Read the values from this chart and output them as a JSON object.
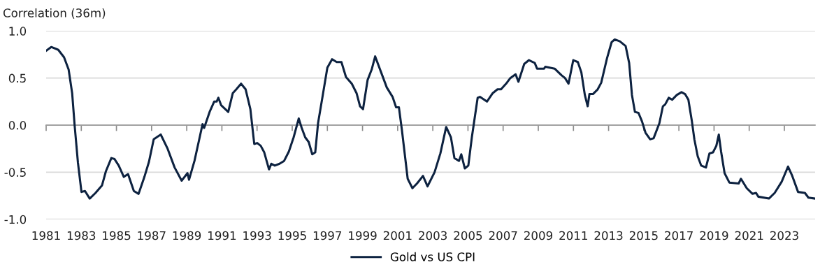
{
  "chart_data": {
    "type": "line",
    "ylabel": "Correlation (36m)",
    "xlim": [
      1981,
      2024.75
    ],
    "xticks": [
      1981,
      1983,
      1985,
      1987,
      1989,
      1991,
      1993,
      1995,
      1997,
      1999,
      2001,
      2003,
      2005,
      2007,
      2009,
      2011,
      2013,
      2015,
      2017,
      2019,
      2021,
      2023
    ],
    "ylim": [
      -1.0,
      1.0
    ],
    "yticks": [
      {
        "value": -1.0,
        "label": "-1.0"
      },
      {
        "value": -0.5,
        "label": "-0.5"
      },
      {
        "value": 0.0,
        "label": "0.0"
      },
      {
        "value": 0.5,
        "label": "0.5"
      },
      {
        "value": 1.0,
        "label": "1.0"
      }
    ],
    "grid": "y",
    "legend": "bottom",
    "marker": "none",
    "line_style": "solid",
    "series": [
      {
        "name": "Gold vs US CPI",
        "color": "#0d2240",
        "x": [
          1981.0,
          1981.29,
          1981.69,
          1982.02,
          1982.28,
          1982.48,
          1982.62,
          1982.81,
          1983.01,
          1983.21,
          1983.48,
          1983.81,
          1984.18,
          1984.4,
          1984.71,
          1984.89,
          1985.13,
          1985.42,
          1985.66,
          1985.99,
          1986.26,
          1986.59,
          1986.85,
          1987.12,
          1987.52,
          1987.91,
          1988.31,
          1988.71,
          1989.04,
          1989.13,
          1989.44,
          1989.77,
          1989.9,
          1989.99,
          1990.3,
          1990.56,
          1990.7,
          1990.8,
          1990.96,
          1991.36,
          1991.62,
          1991.82,
          1992.09,
          1992.35,
          1992.62,
          1992.84,
          1993.01,
          1993.21,
          1993.41,
          1993.68,
          1993.81,
          1994.01,
          1994.28,
          1994.54,
          1994.81,
          1995.08,
          1995.37,
          1995.54,
          1995.74,
          1995.94,
          1996.14,
          1996.31,
          1996.47,
          1996.74,
          1997.0,
          1997.27,
          1997.53,
          1997.8,
          1998.06,
          1998.39,
          1998.66,
          1998.86,
          1999.03,
          1999.29,
          1999.52,
          1999.72,
          2000.12,
          2000.38,
          2000.71,
          2000.91,
          2001.07,
          2001.24,
          2001.57,
          2001.84,
          2002.1,
          2002.44,
          2002.7,
          2003.1,
          2003.43,
          2003.76,
          2004.03,
          2004.23,
          2004.49,
          2004.62,
          2004.82,
          2005.02,
          2005.22,
          2005.55,
          2005.68,
          2006.08,
          2006.41,
          2006.68,
          2006.88,
          2007.21,
          2007.41,
          2007.71,
          2007.87,
          2008.2,
          2008.47,
          2008.8,
          2008.93,
          2009.33,
          2009.4,
          2009.93,
          2010.32,
          2010.52,
          2010.72,
          2010.85,
          2010.99,
          2011.25,
          2011.45,
          2011.65,
          2011.81,
          2011.91,
          2012.11,
          2012.38,
          2012.58,
          2012.91,
          2013.17,
          2013.35,
          2013.64,
          2013.97,
          2014.17,
          2014.33,
          2014.5,
          2014.7,
          2014.9,
          2015.1,
          2015.36,
          2015.56,
          2015.89,
          2016.09,
          2016.22,
          2016.42,
          2016.62,
          2016.88,
          2017.15,
          2017.35,
          2017.54,
          2017.74,
          2017.88,
          2018.07,
          2018.27,
          2018.54,
          2018.74,
          2018.94,
          2019.13,
          2019.27,
          2019.4,
          2019.6,
          2019.87,
          2020.4,
          2020.53,
          2020.86,
          2021.19,
          2021.39,
          2021.52,
          2022.12,
          2022.45,
          2022.85,
          2023.21,
          2023.45,
          2023.78,
          2024.17,
          2024.37,
          2024.73
        ],
        "values": [
          0.79,
          0.83,
          0.8,
          0.72,
          0.59,
          0.34,
          0.0,
          -0.4,
          -0.71,
          -0.7,
          -0.78,
          -0.72,
          -0.64,
          -0.49,
          -0.35,
          -0.36,
          -0.43,
          -0.55,
          -0.52,
          -0.7,
          -0.73,
          -0.55,
          -0.39,
          -0.15,
          -0.1,
          -0.25,
          -0.45,
          -0.59,
          -0.51,
          -0.58,
          -0.38,
          -0.1,
          0.01,
          -0.03,
          0.14,
          0.25,
          0.25,
          0.29,
          0.21,
          0.14,
          0.34,
          0.38,
          0.44,
          0.38,
          0.17,
          -0.2,
          -0.19,
          -0.22,
          -0.29,
          -0.47,
          -0.41,
          -0.43,
          -0.41,
          -0.38,
          -0.28,
          -0.13,
          0.07,
          -0.03,
          -0.13,
          -0.18,
          -0.31,
          -0.29,
          0.02,
          0.32,
          0.61,
          0.7,
          0.67,
          0.67,
          0.51,
          0.44,
          0.34,
          0.2,
          0.17,
          0.48,
          0.59,
          0.73,
          0.53,
          0.4,
          0.3,
          0.19,
          0.19,
          -0.05,
          -0.57,
          -0.67,
          -0.62,
          -0.54,
          -0.65,
          -0.5,
          -0.3,
          -0.02,
          -0.13,
          -0.35,
          -0.38,
          -0.31,
          -0.46,
          -0.43,
          -0.13,
          0.29,
          0.3,
          0.25,
          0.34,
          0.38,
          0.38,
          0.45,
          0.5,
          0.54,
          0.46,
          0.65,
          0.69,
          0.66,
          0.6,
          0.6,
          0.62,
          0.6,
          0.53,
          0.5,
          0.44,
          0.56,
          0.69,
          0.67,
          0.56,
          0.32,
          0.2,
          0.33,
          0.33,
          0.38,
          0.45,
          0.71,
          0.88,
          0.91,
          0.89,
          0.84,
          0.66,
          0.32,
          0.14,
          0.13,
          0.04,
          -0.08,
          -0.15,
          -0.14,
          0.02,
          0.2,
          0.22,
          0.29,
          0.27,
          0.32,
          0.35,
          0.33,
          0.27,
          0.04,
          -0.15,
          -0.33,
          -0.43,
          -0.45,
          -0.3,
          -0.29,
          -0.22,
          -0.1,
          -0.28,
          -0.51,
          -0.61,
          -0.62,
          -0.57,
          -0.67,
          -0.73,
          -0.72,
          -0.76,
          -0.78,
          -0.72,
          -0.6,
          -0.44,
          -0.54,
          -0.71,
          -0.72,
          -0.77,
          -0.78
        ]
      }
    ]
  }
}
